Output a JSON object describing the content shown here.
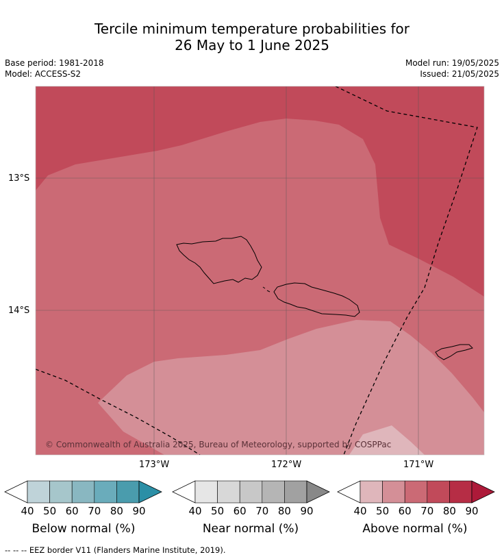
{
  "title": {
    "line1": "Tercile minimum temperature probabilities for",
    "line2": "26 May to 1 June 2025"
  },
  "meta": {
    "base_period": "Base period: 1981-2018",
    "model": "Model: ACCESS-S2",
    "model_run": "Model run: 19/05/2025",
    "issued": "Issued: 21/05/2025"
  },
  "map": {
    "lat_labels": [
      "13°S",
      "14°S"
    ],
    "lon_labels": [
      "173°W",
      "172°W",
      "171°W"
    ],
    "copyright": "© Commonwealth of Australia 2025, Bureau of Meteorology, supported by COSPPac",
    "colors": {
      "above_40": "#dfb6bb",
      "above_50": "#d48f97",
      "above_60": "#cb6a75",
      "above_70": "#c14a5a",
      "land_outline": "#000000",
      "eez_border": "#000000"
    }
  },
  "legend": {
    "ticks": [
      "40",
      "50",
      "60",
      "70",
      "80",
      "90"
    ],
    "below": {
      "title": "Below normal (%)",
      "colors": [
        "#ffffff",
        "#bfd3d9",
        "#a6c6cb",
        "#89b7c1",
        "#6aacbb",
        "#4a9cad",
        "#2b8fa6"
      ]
    },
    "near": {
      "title": "Near normal (%)",
      "colors": [
        "#ffffff",
        "#e6e6e6",
        "#d8d8d8",
        "#c8c8c8",
        "#b5b5b5",
        "#a1a1a1",
        "#888888"
      ]
    },
    "above": {
      "title": "Above normal (%)",
      "colors": [
        "#ffffff",
        "#dfb6bb",
        "#d48f97",
        "#cb6a75",
        "#c14a5a",
        "#b62d45",
        "#ad1a39"
      ]
    }
  },
  "footnote": "--  --  -- EEZ border V11 (Flanders Marine Institute, 2019)."
}
